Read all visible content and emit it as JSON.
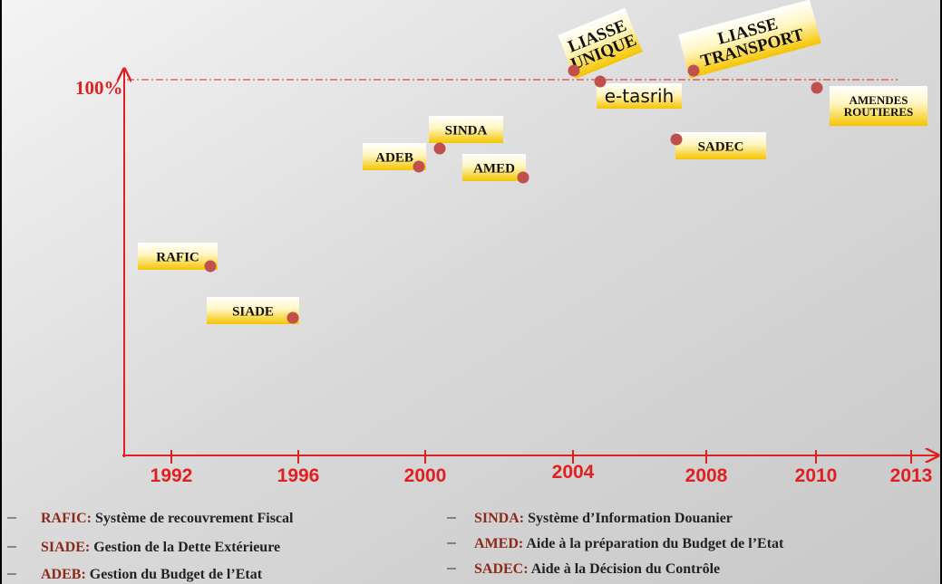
{
  "axis": {
    "y_label": "100%",
    "x_labels": [
      "1992",
      "1996",
      "2000",
      "2004",
      "2008",
      "2010",
      "2013"
    ]
  },
  "nodes": [
    {
      "label": [
        "RAFIC"
      ]
    },
    {
      "label": [
        "SIADE"
      ]
    },
    {
      "label": [
        "ADEB"
      ]
    },
    {
      "label": [
        "SINDA"
      ]
    },
    {
      "label": [
        "AMED"
      ]
    },
    {
      "label": [
        "LIASSE",
        "UNIQUE"
      ]
    },
    {
      "label": [
        "e-tasrih"
      ]
    },
    {
      "label": [
        "LIASSE",
        "TRANSPORT"
      ]
    },
    {
      "label": [
        "SADEC"
      ]
    },
    {
      "label": [
        "AMENDES",
        "ROUTIERES"
      ]
    }
  ],
  "legend": [
    {
      "abbr": "RAFIC:",
      "text": "Système de recouvrement Fiscal"
    },
    {
      "abbr": "SIADE:",
      "text": "Gestion de la Dette Extérieure"
    },
    {
      "abbr": "ADEB:",
      "text": "Gestion du Budget de l’Etat"
    },
    {
      "abbr": "SINDA:",
      "text": "Système d’Information Douanier"
    },
    {
      "abbr": "AMED:",
      "text": "Aide à la préparation du Budget de l’Etat"
    },
    {
      "abbr": "SADEC:",
      "text": "Aide à la Décision du Contrôle"
    }
  ]
}
